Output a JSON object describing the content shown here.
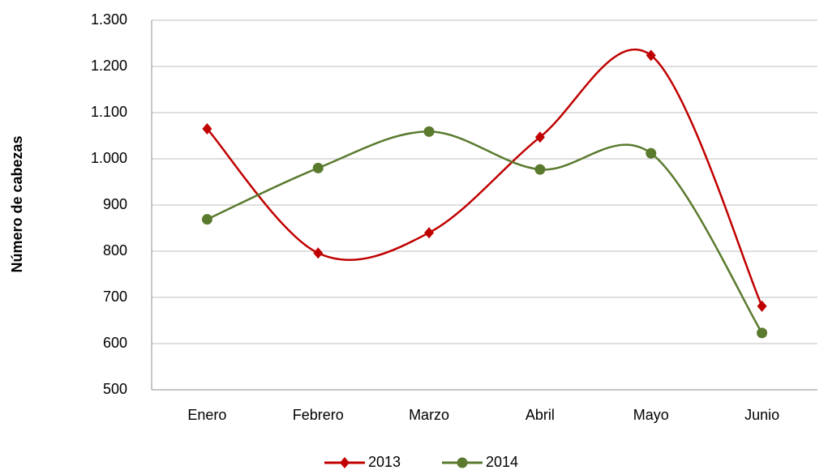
{
  "chart_data": {
    "type": "line",
    "y_label": "Número de cabezas",
    "categories": [
      "Enero",
      "Febrero",
      "Marzo",
      "Abril",
      "Mayo",
      "Junio"
    ],
    "series": [
      {
        "name": "2013",
        "color": "#c00000",
        "marker": "diamond",
        "values": [
          1065,
          796,
          840,
          1047,
          1224,
          681
        ]
      },
      {
        "name": "2014",
        "color": "#5a7a2e",
        "marker": "circle",
        "values": [
          869,
          980,
          1059,
          977,
          1012,
          623
        ]
      }
    ],
    "ylim": [
      500,
      1300
    ],
    "yticks": [
      500,
      600,
      700,
      800,
      900,
      {
        "value": 1000,
        "label": "1.000"
      },
      {
        "value": 1100,
        "label": "1.100"
      },
      {
        "value": 1200,
        "label": "1.200"
      },
      {
        "value": 1300,
        "label": "1.300"
      }
    ],
    "grid": true,
    "smooth": true,
    "legend": "bottom"
  }
}
